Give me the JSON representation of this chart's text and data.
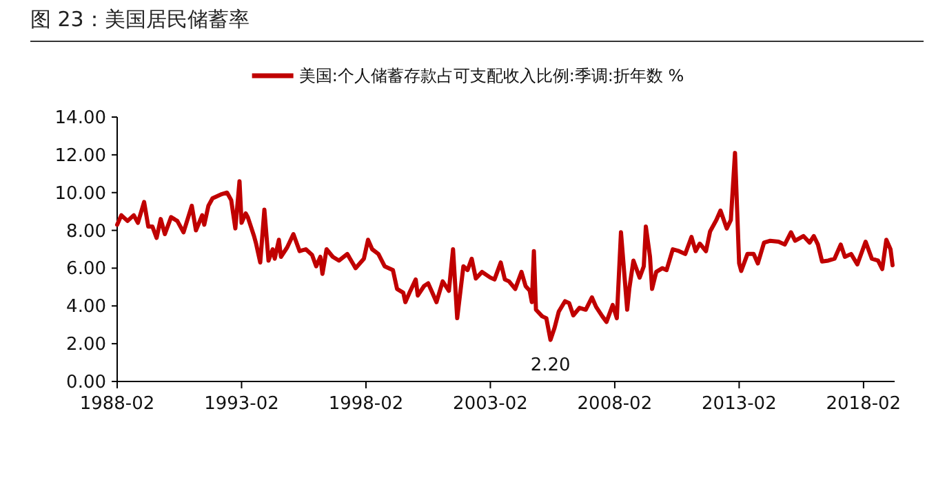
{
  "chart_data": {
    "type": "line",
    "title": "图 23：美国居民储蓄率",
    "x": [
      "1988-02",
      "1988-04",
      "1988-07",
      "1988-10",
      "1988-12",
      "1989-03",
      "1989-05",
      "1989-07",
      "1989-09",
      "1989-11",
      "1990-01",
      "1990-04",
      "1990-07",
      "1990-10",
      "1991-02",
      "1991-04",
      "1991-07",
      "1991-08",
      "1991-10",
      "1991-12",
      "1992-04",
      "1992-07",
      "1992-09",
      "1992-11",
      "1993-01",
      "1993-02",
      "1993-04",
      "1993-05",
      "1993-08",
      "1993-09",
      "1993-11",
      "1994-01",
      "1994-03",
      "1994-05",
      "1994-06",
      "1994-08",
      "1994-09",
      "1994-12",
      "1995-03",
      "1995-06",
      "1995-09",
      "1995-12",
      "1996-02",
      "1996-04",
      "1996-05",
      "1996-07",
      "1996-10",
      "1997-01",
      "1997-05",
      "1997-09",
      "1998-01",
      "1998-03",
      "1998-05",
      "1998-08",
      "1998-11",
      "1999-03",
      "1999-05",
      "1999-08",
      "1999-09",
      "1999-11",
      "2000-02",
      "2000-03",
      "2000-06",
      "2000-08",
      "2000-10",
      "2000-12",
      "2001-03",
      "2001-06",
      "2001-08",
      "2001-10",
      "2002-01",
      "2002-03",
      "2002-05",
      "2002-07",
      "2002-10",
      "2003-02",
      "2003-04",
      "2003-07",
      "2003-09",
      "2003-11",
      "2004-02",
      "2004-05",
      "2004-07",
      "2004-09",
      "2004-10",
      "2004-11",
      "2004-12",
      "2005-03",
      "2005-05",
      "2005-07",
      "2005-09",
      "2005-11",
      "2006-02",
      "2006-04",
      "2006-06",
      "2006-09",
      "2006-12",
      "2007-03",
      "2007-05",
      "2007-08",
      "2007-10",
      "2008-01",
      "2008-03",
      "2008-05",
      "2008-08",
      "2008-09",
      "2008-11",
      "2009-02",
      "2009-04",
      "2009-05",
      "2009-07",
      "2009-08",
      "2009-10",
      "2010-01",
      "2010-03",
      "2010-06",
      "2010-09",
      "2010-12",
      "2011-03",
      "2011-05",
      "2011-07",
      "2011-10",
      "2011-12",
      "2012-03",
      "2012-05",
      "2012-08",
      "2012-10",
      "2012-12",
      "2013-02",
      "2013-03",
      "2013-06",
      "2013-09",
      "2013-11",
      "2014-02",
      "2014-05",
      "2014-09",
      "2014-12",
      "2015-03",
      "2015-05",
      "2015-09",
      "2015-12",
      "2016-02",
      "2016-04",
      "2016-06",
      "2016-09",
      "2016-12",
      "2017-03",
      "2017-05",
      "2017-08",
      "2017-11",
      "2018-03",
      "2018-06",
      "2018-09",
      "2018-11",
      "2019-01",
      "2019-03",
      "2019-04"
    ],
    "series": [
      {
        "name": "美国:个人储蓄存款占可支配收入比例:季调:折年数 %",
        "color": "#c00000",
        "values": [
          8.3,
          8.8,
          8.5,
          8.8,
          8.4,
          9.5,
          8.2,
          8.2,
          7.6,
          8.6,
          7.8,
          8.7,
          8.5,
          7.9,
          9.3,
          8.0,
          8.8,
          8.3,
          9.3,
          9.7,
          9.9,
          10.0,
          9.6,
          8.1,
          10.6,
          8.4,
          8.9,
          8.7,
          7.7,
          7.3,
          6.3,
          9.1,
          6.4,
          7.0,
          6.5,
          7.5,
          6.6,
          7.1,
          7.8,
          6.9,
          7.0,
          6.7,
          6.1,
          6.6,
          5.7,
          7.0,
          6.6,
          6.4,
          6.75,
          6.0,
          6.5,
          7.5,
          7.0,
          6.75,
          6.1,
          5.9,
          4.9,
          4.7,
          4.2,
          4.7,
          5.4,
          4.55,
          5.05,
          5.2,
          4.7,
          4.2,
          5.3,
          4.8,
          7.0,
          3.35,
          6.1,
          5.9,
          6.5,
          5.45,
          5.8,
          5.5,
          5.4,
          6.3,
          5.4,
          5.3,
          4.9,
          5.8,
          5.05,
          4.8,
          4.2,
          6.9,
          3.8,
          3.45,
          3.35,
          2.2,
          2.85,
          3.7,
          4.25,
          4.15,
          3.5,
          3.9,
          3.8,
          4.45,
          3.95,
          3.45,
          3.15,
          4.05,
          3.35,
          7.9,
          3.8,
          4.9,
          6.4,
          5.5,
          6.1,
          8.2,
          6.6,
          4.9,
          5.8,
          6.0,
          5.9,
          7.0,
          6.9,
          6.75,
          7.65,
          6.9,
          7.3,
          6.9,
          7.95,
          8.55,
          9.05,
          8.1,
          8.55,
          12.1,
          6.25,
          5.85,
          6.75,
          6.75,
          6.25,
          7.35,
          7.45,
          7.4,
          7.25,
          7.9,
          7.45,
          7.7,
          7.35,
          7.7,
          7.25,
          6.35,
          6.4,
          6.5,
          7.25,
          6.6,
          6.75,
          6.2,
          7.4,
          6.5,
          6.4,
          5.95,
          7.5,
          7.0,
          6.15
        ]
      }
    ],
    "xlim": [
      "1988-02",
      "2019-05"
    ],
    "xticks": [
      "1988-02",
      "1993-02",
      "1998-02",
      "2003-02",
      "2008-02",
      "2013-02",
      "2018-02"
    ],
    "ylim": [
      0,
      14
    ],
    "yticks": [
      {
        "value": 0,
        "label": "0.00"
      },
      {
        "value": 2,
        "label": "2.00"
      },
      {
        "value": 4,
        "label": "4.00"
      },
      {
        "value": 6,
        "label": "6.00"
      },
      {
        "value": 8,
        "label": "8.00"
      },
      {
        "value": 10,
        "label": "10.00"
      },
      {
        "value": 12,
        "label": "12.00"
      },
      {
        "value": 14,
        "label": "14.00"
      }
    ],
    "annotations": [
      {
        "text": "2.20",
        "x": "2005-07",
        "y": 2.2
      }
    ],
    "legend": "top",
    "grid": false,
    "marker": "none",
    "line_style": "solid"
  }
}
